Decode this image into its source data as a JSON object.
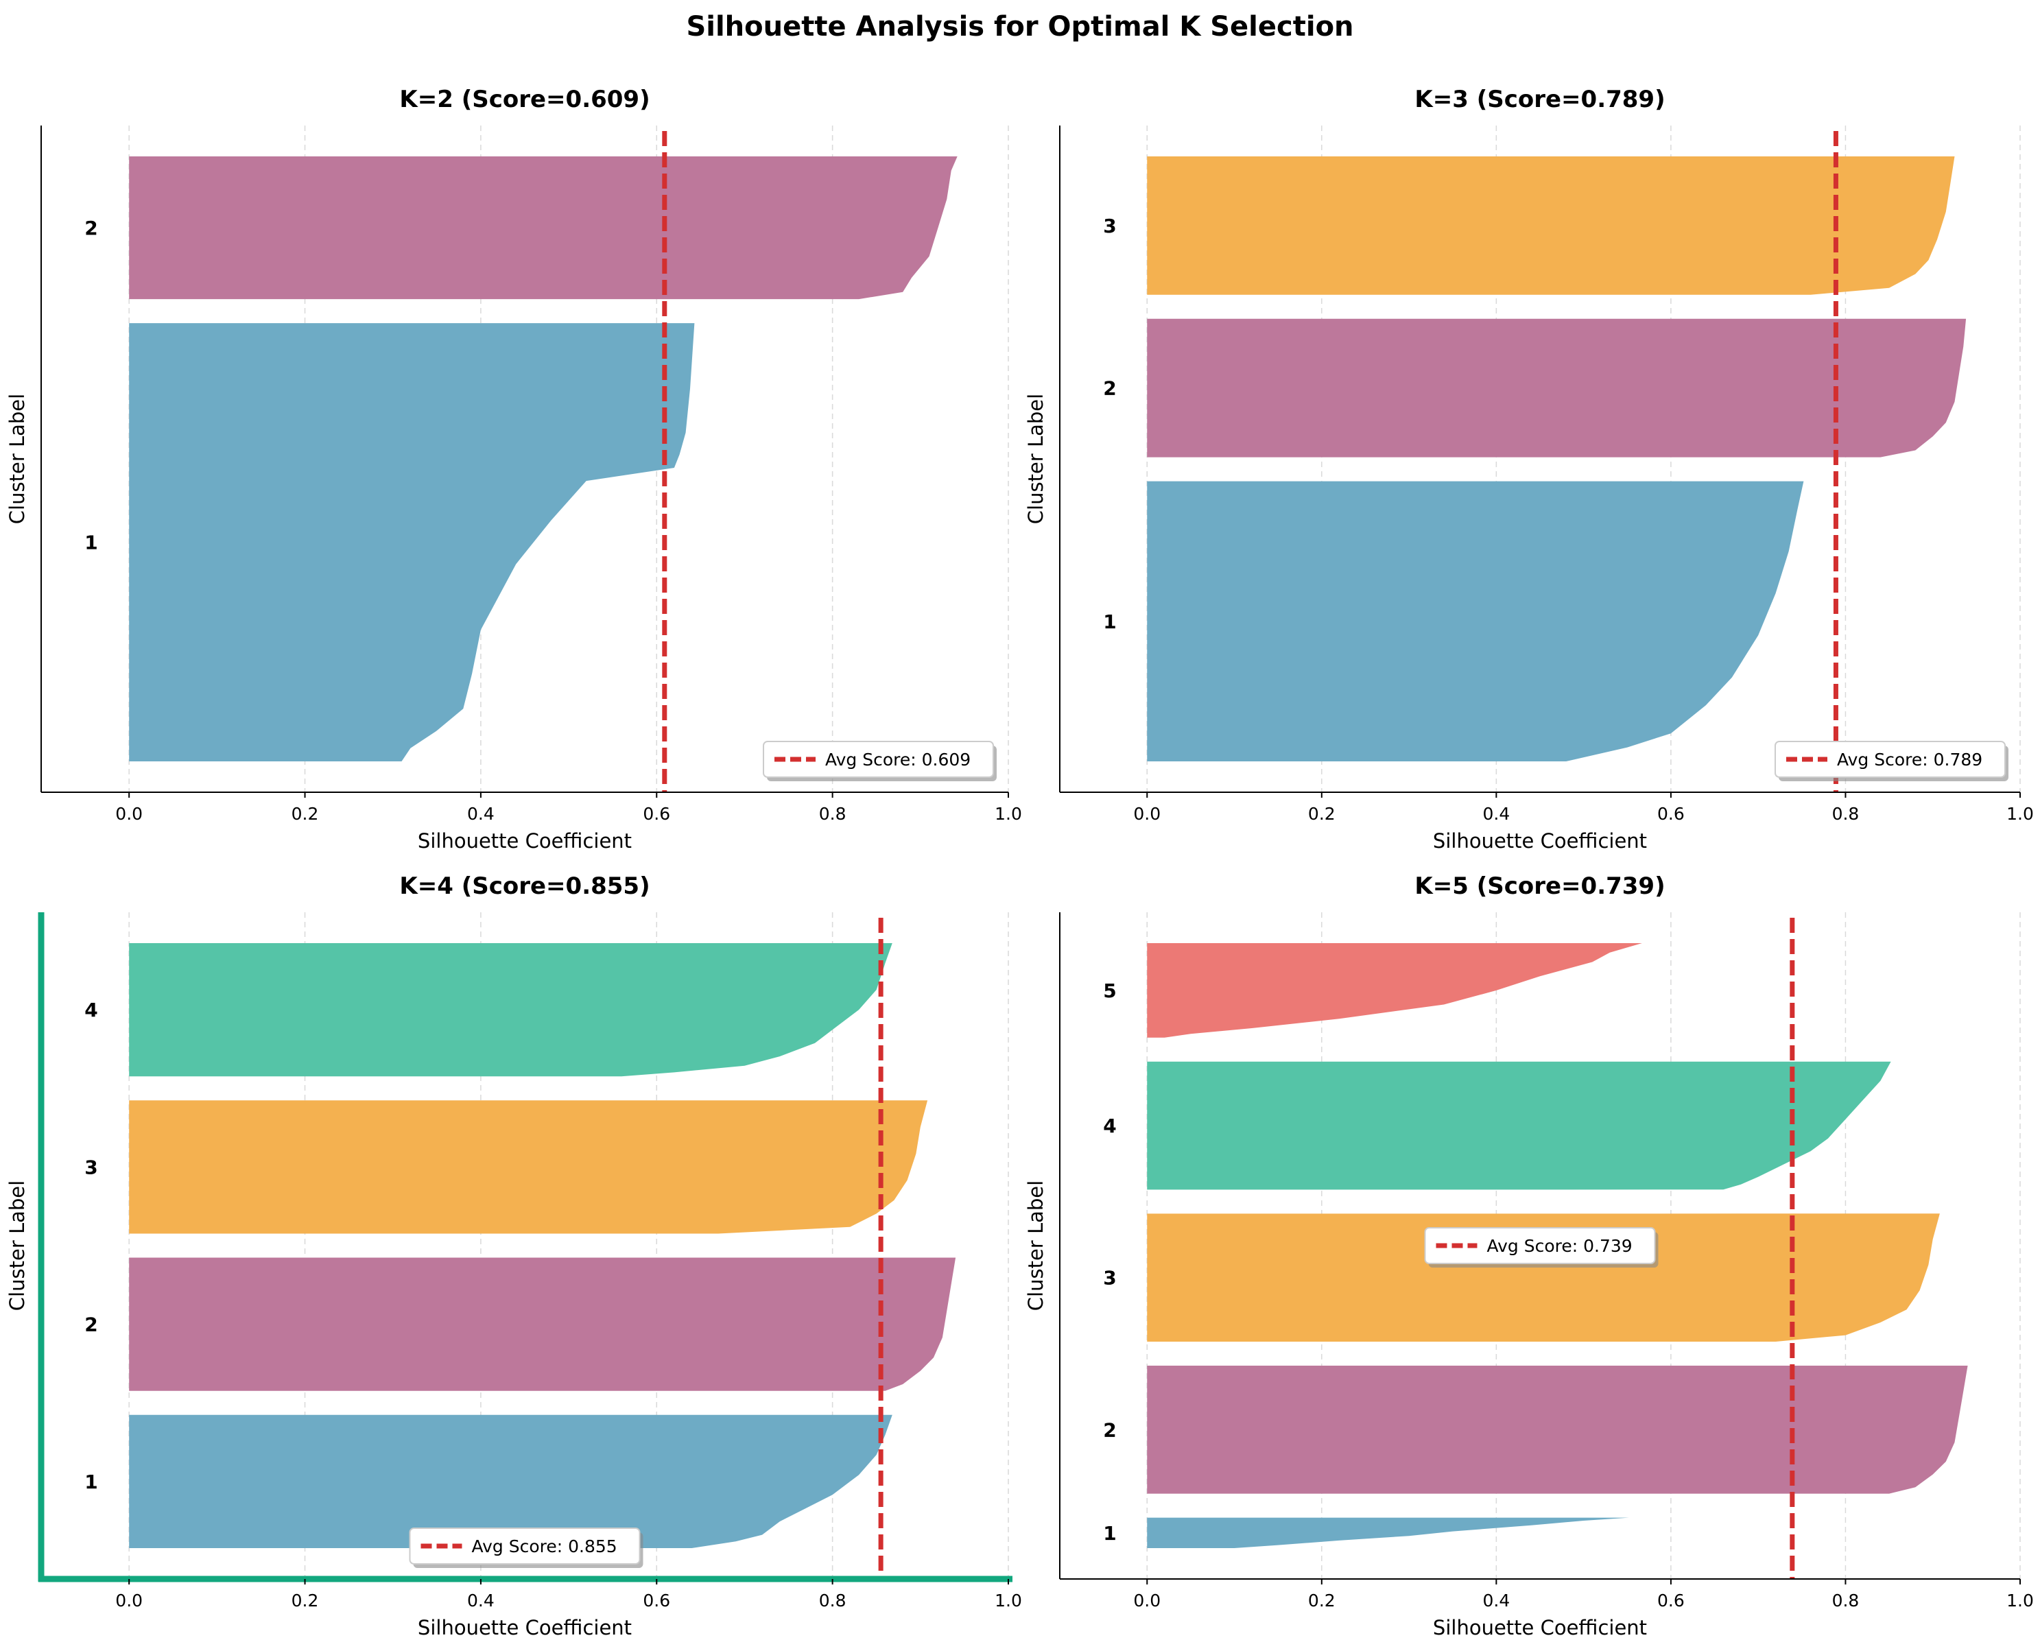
{
  "figure": {
    "title": "Silhouette Analysis for Optimal K Selection"
  },
  "colors": {
    "cluster1": "#6BA9C4",
    "cluster2": "#BC7599",
    "cluster3": "#F4AF4D",
    "cluster4": "#52C3A5",
    "cluster5": "#EC7672",
    "avg_line": "#D32F2F",
    "highlight_spine": "#12A77E",
    "grid": "#d9d9d9"
  },
  "chart_data": [
    {
      "type": "silhouette",
      "k": 2,
      "title": "K=2 (Score=0.609)",
      "xlabel": "Silhouette Coefficient",
      "ylabel": "Cluster Label",
      "xlim": [
        -0.1,
        1.0
      ],
      "xticks": [
        "0.0",
        "0.2",
        "0.4",
        "0.6",
        "0.8",
        "1.0"
      ],
      "grid": "vertical dashed",
      "avg_score": 0.609,
      "legend_label": "Avg Score: 0.609",
      "legend_loc": "lower-right",
      "highlighted": false,
      "clusters": [
        {
          "label": "1",
          "color_key": "cluster1",
          "rel_size": 132,
          "profile": [
            [
              0,
              0.643
            ],
            [
              0.15,
              0.638
            ],
            [
              0.25,
              0.633
            ],
            [
              0.3,
              0.626
            ],
            [
              0.33,
              0.62
            ],
            [
              0.36,
              0.52
            ],
            [
              0.45,
              0.48
            ],
            [
              0.55,
              0.44
            ],
            [
              0.7,
              0.4
            ],
            [
              0.8,
              0.39
            ],
            [
              0.88,
              0.38
            ],
            [
              0.93,
              0.35
            ],
            [
              0.97,
              0.32
            ],
            [
              1,
              0.31
            ]
          ]
        },
        {
          "label": "2",
          "color_key": "cluster2",
          "rel_size": 43,
          "profile": [
            [
              0,
              0.942
            ],
            [
              0.1,
              0.935
            ],
            [
              0.3,
              0.93
            ],
            [
              0.5,
              0.92
            ],
            [
              0.7,
              0.91
            ],
            [
              0.85,
              0.89
            ],
            [
              0.95,
              0.88
            ],
            [
              1,
              0.83
            ]
          ]
        }
      ]
    },
    {
      "type": "silhouette",
      "k": 3,
      "title": "K=3 (Score=0.789)",
      "xlabel": "Silhouette Coefficient",
      "ylabel": "Cluster Label",
      "xlim": [
        -0.1,
        1.0
      ],
      "xticks": [
        "0.0",
        "0.2",
        "0.4",
        "0.6",
        "0.8",
        "1.0"
      ],
      "grid": "vertical dashed",
      "avg_score": 0.789,
      "legend_label": "Avg Score: 0.789",
      "legend_loc": "lower-right",
      "highlighted": false,
      "clusters": [
        {
          "label": "1",
          "color_key": "cluster1",
          "rel_size": 85,
          "profile": [
            [
              0,
              0.752
            ],
            [
              0.1,
              0.745
            ],
            [
              0.25,
              0.735
            ],
            [
              0.4,
              0.72
            ],
            [
              0.55,
              0.7
            ],
            [
              0.7,
              0.67
            ],
            [
              0.8,
              0.64
            ],
            [
              0.9,
              0.6
            ],
            [
              0.95,
              0.55
            ],
            [
              1,
              0.48
            ]
          ]
        },
        {
          "label": "2",
          "color_key": "cluster2",
          "rel_size": 42,
          "profile": [
            [
              0,
              0.938
            ],
            [
              0.2,
              0.935
            ],
            [
              0.4,
              0.93
            ],
            [
              0.6,
              0.925
            ],
            [
              0.75,
              0.915
            ],
            [
              0.85,
              0.9
            ],
            [
              0.95,
              0.88
            ],
            [
              1,
              0.84
            ]
          ]
        },
        {
          "label": "3",
          "color_key": "cluster3",
          "rel_size": 42,
          "profile": [
            [
              0,
              0.925
            ],
            [
              0.2,
              0.92
            ],
            [
              0.4,
              0.915
            ],
            [
              0.6,
              0.905
            ],
            [
              0.75,
              0.895
            ],
            [
              0.85,
              0.88
            ],
            [
              0.95,
              0.85
            ],
            [
              1,
              0.76
            ]
          ]
        }
      ]
    },
    {
      "type": "silhouette",
      "k": 4,
      "title": "K=4 (Score=0.855)",
      "xlabel": "Silhouette Coefficient",
      "ylabel": "Cluster Label",
      "xlim": [
        -0.1,
        1.0
      ],
      "xticks": [
        "0.0",
        "0.2",
        "0.4",
        "0.6",
        "0.8",
        "1.0"
      ],
      "grid": "vertical dashed",
      "avg_score": 0.855,
      "legend_label": "Avg Score: 0.855",
      "legend_loc": "lower-center",
      "highlighted": true,
      "clusters": [
        {
          "label": "1",
          "color_key": "cluster1",
          "rel_size": 42,
          "profile": [
            [
              0,
              0.868
            ],
            [
              0.15,
              0.86
            ],
            [
              0.3,
              0.85
            ],
            [
              0.45,
              0.83
            ],
            [
              0.6,
              0.8
            ],
            [
              0.7,
              0.77
            ],
            [
              0.8,
              0.74
            ],
            [
              0.9,
              0.72
            ],
            [
              0.95,
              0.69
            ],
            [
              1,
              0.64
            ]
          ]
        },
        {
          "label": "2",
          "color_key": "cluster2",
          "rel_size": 42,
          "profile": [
            [
              0,
              0.94
            ],
            [
              0.2,
              0.935
            ],
            [
              0.4,
              0.93
            ],
            [
              0.6,
              0.925
            ],
            [
              0.75,
              0.915
            ],
            [
              0.85,
              0.9
            ],
            [
              0.95,
              0.88
            ],
            [
              1,
              0.86
            ]
          ]
        },
        {
          "label": "3",
          "color_key": "cluster3",
          "rel_size": 42,
          "profile": [
            [
              0,
              0.908
            ],
            [
              0.2,
              0.9
            ],
            [
              0.4,
              0.895
            ],
            [
              0.6,
              0.885
            ],
            [
              0.75,
              0.87
            ],
            [
              0.85,
              0.85
            ],
            [
              0.95,
              0.82
            ],
            [
              1,
              0.67
            ]
          ]
        },
        {
          "label": "4",
          "color_key": "cluster4",
          "rel_size": 42,
          "profile": [
            [
              0,
              0.868
            ],
            [
              0.15,
              0.86
            ],
            [
              0.35,
              0.85
            ],
            [
              0.5,
              0.83
            ],
            [
              0.65,
              0.8
            ],
            [
              0.75,
              0.78
            ],
            [
              0.85,
              0.74
            ],
            [
              0.92,
              0.7
            ],
            [
              0.97,
              0.62
            ],
            [
              1,
              0.56
            ]
          ]
        }
      ]
    },
    {
      "type": "silhouette",
      "k": 5,
      "title": "K=5 (Score=0.739)",
      "xlabel": "Silhouette Coefficient",
      "ylabel": "Cluster Label",
      "xlim": [
        -0.1,
        1.0
      ],
      "xticks": [
        "0.0",
        "0.2",
        "0.4",
        "0.6",
        "0.8",
        "1.0"
      ],
      "grid": "vertical dashed",
      "avg_score": 0.739,
      "legend_label": "Avg Score: 0.739",
      "legend_loc": "center",
      "highlighted": false,
      "clusters": [
        {
          "label": "1",
          "color_key": "cluster1",
          "rel_size": 10,
          "profile": [
            [
              0,
              0.552
            ],
            [
              0.1,
              0.5
            ],
            [
              0.25,
              0.44
            ],
            [
              0.45,
              0.35
            ],
            [
              0.6,
              0.3
            ],
            [
              0.75,
              0.22
            ],
            [
              0.9,
              0.15
            ],
            [
              1,
              0.1
            ]
          ]
        },
        {
          "label": "2",
          "color_key": "cluster2",
          "rel_size": 42,
          "profile": [
            [
              0,
              0.94
            ],
            [
              0.2,
              0.935
            ],
            [
              0.4,
              0.93
            ],
            [
              0.6,
              0.925
            ],
            [
              0.75,
              0.915
            ],
            [
              0.85,
              0.9
            ],
            [
              0.95,
              0.88
            ],
            [
              1,
              0.85
            ]
          ]
        },
        {
          "label": "3",
          "color_key": "cluster3",
          "rel_size": 42,
          "profile": [
            [
              0,
              0.908
            ],
            [
              0.2,
              0.9
            ],
            [
              0.4,
              0.895
            ],
            [
              0.6,
              0.885
            ],
            [
              0.75,
              0.87
            ],
            [
              0.85,
              0.84
            ],
            [
              0.95,
              0.8
            ],
            [
              1,
              0.72
            ]
          ]
        },
        {
          "label": "4",
          "color_key": "cluster4",
          "rel_size": 42,
          "profile": [
            [
              0,
              0.852
            ],
            [
              0.15,
              0.84
            ],
            [
              0.3,
              0.82
            ],
            [
              0.45,
              0.8
            ],
            [
              0.6,
              0.78
            ],
            [
              0.7,
              0.76
            ],
            [
              0.8,
              0.73
            ],
            [
              0.9,
              0.7
            ],
            [
              0.96,
              0.68
            ],
            [
              1,
              0.66
            ]
          ]
        },
        {
          "label": "5",
          "color_key": "cluster5",
          "rel_size": 31,
          "profile": [
            [
              0,
              0.567
            ],
            [
              0.1,
              0.53
            ],
            [
              0.2,
              0.51
            ],
            [
              0.35,
              0.45
            ],
            [
              0.5,
              0.4
            ],
            [
              0.65,
              0.34
            ],
            [
              0.8,
              0.22
            ],
            [
              0.9,
              0.12
            ],
            [
              0.96,
              0.05
            ],
            [
              1,
              0.02
            ]
          ]
        }
      ]
    }
  ]
}
